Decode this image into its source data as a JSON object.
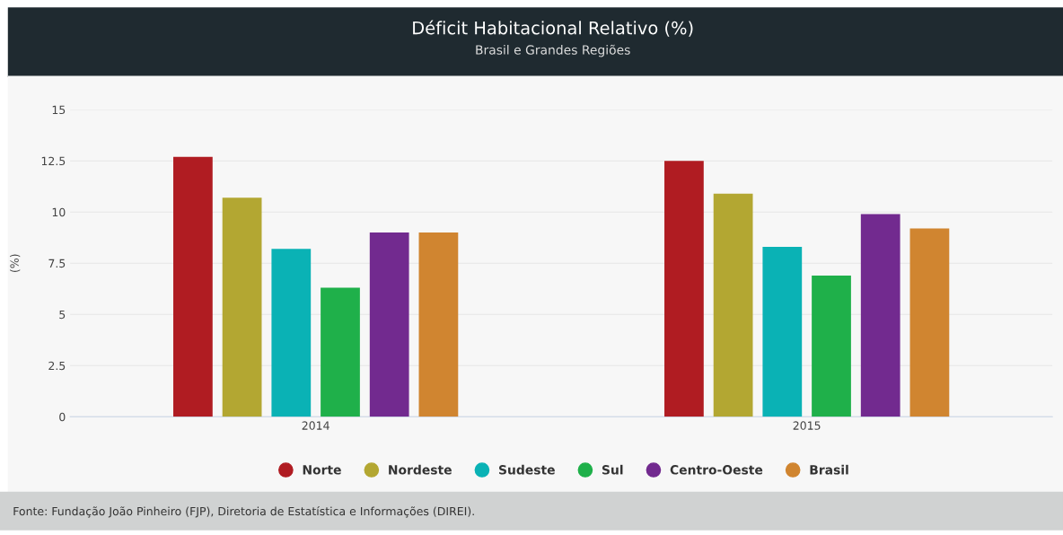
{
  "chart_data": {
    "type": "bar",
    "title": "Déficit Habitacional Relativo (%)",
    "subtitle": "Brasil e Grandes Regiões",
    "ylabel": "(%)",
    "categories": [
      "2014",
      "2015"
    ],
    "series": [
      {
        "name": "Norte",
        "color": "#b01c22",
        "values": [
          12.7,
          12.5
        ]
      },
      {
        "name": "Nordeste",
        "color": "#b3a732",
        "values": [
          10.7,
          10.9
        ]
      },
      {
        "name": "Sudeste",
        "color": "#0ab2b5",
        "values": [
          8.2,
          8.3
        ]
      },
      {
        "name": "Sul",
        "color": "#1fb04a",
        "values": [
          6.3,
          6.9
        ]
      },
      {
        "name": "Centro-Oeste",
        "color": "#722a8f",
        "values": [
          9.0,
          9.9
        ]
      },
      {
        "name": "Brasil",
        "color": "#d08530",
        "values": [
          9.0,
          9.2
        ]
      }
    ],
    "ylim": [
      0,
      15
    ],
    "yticks": [
      0,
      2.5,
      5,
      7.5,
      10,
      12.5,
      15
    ],
    "grid": "y",
    "legend": "bottom",
    "marker": "circle",
    "annotations": [
      "Fonte: Fundação João Pinheiro (FJP), Diretoria de Estatística e Informações (DIREI)."
    ]
  }
}
